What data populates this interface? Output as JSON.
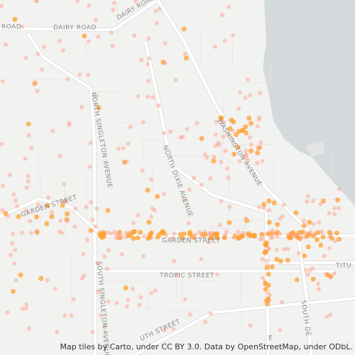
{
  "map": {
    "labels": {
      "dairy_road_left": "ROAD",
      "dairy_road": "DAIRY ROAD",
      "dairy_road_top": "DAIRY ROAD",
      "north_singleton": "NORTH SINGLETON AVENUE",
      "north_dixie": "NORTH DIXIE AVENUE",
      "washington": "WASHINGTON AVENUE",
      "garden_street_west": "GARDEN STREET",
      "garden_street": "GARDEN STREET",
      "tropic_street": "TROPIC STREET",
      "south_singleton": "SOUTH SINGLETON AVENUE",
      "south_dixie": "SOUTH DE",
      "titu": "TITU",
      "south_street": "UTH STREET",
      "washington_end": "E"
    },
    "attribution": "Map tiles by Carto, under CC BY 3.0. Data by OpenStreetMap, under ODbL."
  }
}
